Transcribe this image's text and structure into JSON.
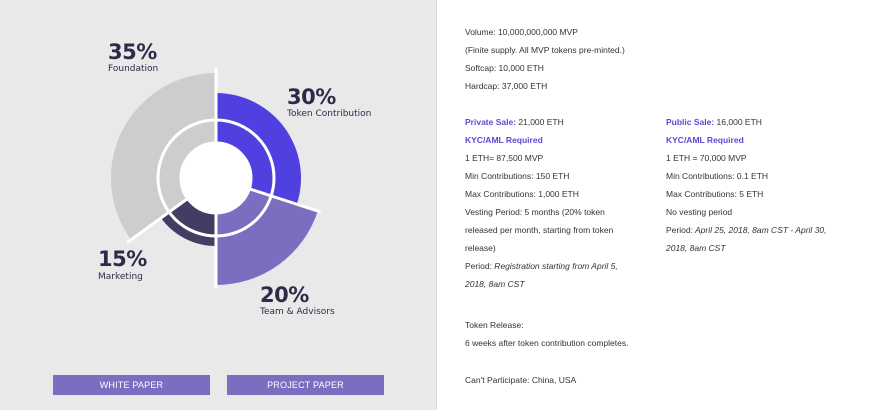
{
  "chart_data": {
    "type": "pie",
    "segments": [
      {
        "label": "Foundation",
        "percent_label": "35%",
        "value": 35,
        "color": "#cdcdcd"
      },
      {
        "label": "Token Contribution",
        "percent_label": "30%",
        "value": 30,
        "color": "#5140e0"
      },
      {
        "label": "Team & Advisors",
        "percent_label": "20%",
        "value": 20,
        "color": "#7b6ec0"
      },
      {
        "label": "Marketing",
        "percent_label": "15%",
        "value": 15,
        "color": "#433d63"
      }
    ]
  },
  "buttons": {
    "white_paper": "WHITE PAPER",
    "project_paper": "PROJECT PAPER"
  },
  "summary": {
    "volume": "Volume: 10,000,000,000 MVP",
    "supply_note": "(Finite supply. All MVP tokens pre-minted.)",
    "softcap": "Softcap: 10,000 ETH",
    "hardcap": "Hardcap: 37,000 ETH"
  },
  "private_sale": {
    "title": "Private Sale:",
    "amount": " 21,000 ETH",
    "kyc": "KYC/AML Required",
    "rate": "1 ETH= 87,500 MVP",
    "min": "Min Contributions: 150 ETH",
    "max": "Max Contributions: 1,000 ETH",
    "vesting_1": "Vesting Period: 5 months (20% token",
    "vesting_2": "released per month, starting from token",
    "vesting_3": "release)",
    "period_label": "Period:",
    "period_1": " Registration starting from April 5,",
    "period_2": "2018, 8am CST"
  },
  "public_sale": {
    "title": "Public Sale:",
    "amount": " 16,000 ETH",
    "kyc": "KYC/AML Required",
    "rate": "1 ETH = 70,000 MVP",
    "min": "Min Contributions: 0.1 ETH",
    "max": "Max Contributions: 5 ETH",
    "vesting": "No vesting period",
    "period_label": "Period:",
    "period_1": " April 25, 2018, 8am CST - April 30,",
    "period_2": "2018, 8am CST"
  },
  "release": {
    "title": "Token Release:",
    "text": "6 weeks after token contribution completes."
  },
  "restriction": "Can't Participate: China, USA"
}
